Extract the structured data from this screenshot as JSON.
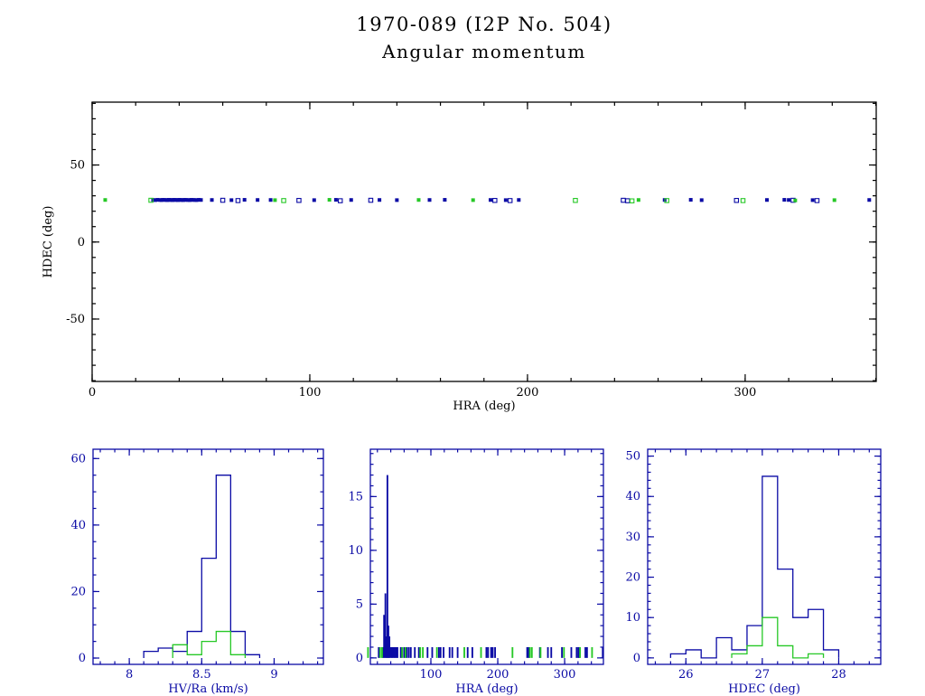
{
  "figure": {
    "title": "1970-089 (I2P No. 504)",
    "subtitle": "Angular momentum"
  },
  "colors": {
    "top_axis": "#000000",
    "bottom_axis": "#0A0AA5",
    "series_primary_blue": "#0A0AA5",
    "series_secondary_green": "#26C826",
    "background": "#FFFFFF"
  },
  "chart_data": [
    {
      "id": "scatter-hdec-hra",
      "type": "scatter",
      "xlabel": "HRA (deg)",
      "ylabel": "HDEC (deg)",
      "xlim": [
        0,
        360.2
      ],
      "ylim": [
        -90.5,
        90.8
      ],
      "xticks": [
        0,
        100,
        200,
        300
      ],
      "yticks": [
        -50,
        0,
        50
      ],
      "grid": false,
      "legend": "none",
      "frame_color": "#000000",
      "text_color": "#000000",
      "series": [
        {
          "name": "primary-filled",
          "color": "#0A0AA5",
          "marker": "square-filled",
          "points": [
            [
              28,
              27.3
            ],
            [
              29,
              27.2
            ],
            [
              30,
              27.4
            ],
            [
              31,
              27.3
            ],
            [
              31.8,
              27.2
            ],
            [
              32.5,
              27.4
            ],
            [
              33.2,
              27.3
            ],
            [
              34,
              27.3
            ],
            [
              34.6,
              27.2
            ],
            [
              35.2,
              27.4
            ],
            [
              35.8,
              27.3
            ],
            [
              36.4,
              27.3
            ],
            [
              37,
              27.2
            ],
            [
              37.6,
              27.4
            ],
            [
              38.2,
              27.3
            ],
            [
              38.8,
              27.3
            ],
            [
              39.4,
              27.2
            ],
            [
              40,
              27.4
            ],
            [
              40.6,
              27.3
            ],
            [
              41.2,
              27.3
            ],
            [
              41.8,
              27.2
            ],
            [
              42.5,
              27.4
            ],
            [
              43.2,
              27.3
            ],
            [
              44,
              27.3
            ],
            [
              44.8,
              27.2
            ],
            [
              45.6,
              27.4
            ],
            [
              46.4,
              27.3
            ],
            [
              47.2,
              27.3
            ],
            [
              48,
              27.2
            ],
            [
              49,
              27.4
            ],
            [
              50,
              27.3
            ],
            [
              55,
              27.3
            ],
            [
              64,
              27.2
            ],
            [
              70,
              27.4
            ],
            [
              76,
              27.3
            ],
            [
              82,
              27.3
            ],
            [
              102,
              27.2
            ],
            [
              112,
              27.4
            ],
            [
              119,
              27.3
            ],
            [
              132,
              27.3
            ],
            [
              140,
              27.2
            ],
            [
              155,
              27.3
            ],
            [
              162,
              27.4
            ],
            [
              183,
              27.3
            ],
            [
              190,
              27.2
            ],
            [
              196,
              27.3
            ],
            [
              263,
              27.3
            ],
            [
              275,
              27.4
            ],
            [
              280,
              27.2
            ],
            [
              310,
              27.3
            ],
            [
              318,
              27.4
            ],
            [
              320,
              27.3
            ],
            [
              331,
              27.2
            ],
            [
              357,
              27.3
            ]
          ]
        },
        {
          "name": "primary-open",
          "color": "#0A0AA5",
          "marker": "square-open",
          "points": [
            [
              60,
              27.1
            ],
            [
              67,
              26.9
            ],
            [
              95,
              27.0
            ],
            [
              114,
              26.8
            ],
            [
              128,
              27.1
            ],
            [
              185,
              27.0
            ],
            [
              192,
              26.9
            ],
            [
              244,
              27.1
            ],
            [
              246,
              26.8
            ],
            [
              296,
              27.0
            ],
            [
              322,
              27.1
            ],
            [
              333,
              26.9
            ]
          ]
        },
        {
          "name": "secondary-filled",
          "color": "#26C826",
          "marker": "square-filled",
          "points": [
            [
              6,
              27.3
            ],
            [
              84,
              27.2
            ],
            [
              109,
              27.4
            ],
            [
              150,
              27.3
            ],
            [
              175,
              27.2
            ],
            [
              251,
              27.3
            ],
            [
              323,
              27.0
            ],
            [
              341,
              27.2
            ]
          ]
        },
        {
          "name": "secondary-open",
          "color": "#26C826",
          "marker": "square-open",
          "points": [
            [
              27,
              27.1
            ],
            [
              88,
              26.9
            ],
            [
              222,
              27.0
            ],
            [
              248,
              26.7
            ],
            [
              264,
              26.9
            ],
            [
              299,
              26.9
            ]
          ]
        }
      ]
    },
    {
      "id": "hist-hvra",
      "type": "histogram",
      "xlabel": "HV/Ra (km/s)",
      "ylabel": "",
      "xlim": [
        7.75,
        9.34
      ],
      "ylim": [
        -1.9,
        62.8
      ],
      "xticks": [
        8,
        8.5,
        9
      ],
      "yticks": [
        0,
        20,
        40,
        60
      ],
      "frame_color": "#0A0AA5",
      "text_color": "#0A0AA5",
      "series": [
        {
          "name": "all",
          "color": "#0A0AA5",
          "bin_start": 8.1,
          "bin_width": 0.1,
          "counts": [
            2,
            3,
            2,
            8,
            30,
            55,
            8,
            1
          ]
        },
        {
          "name": "subset",
          "color": "#26C826",
          "bin_start": 8.3,
          "bin_width": 0.1,
          "counts": [
            4,
            1,
            5,
            8,
            1
          ]
        }
      ]
    },
    {
      "id": "hist-hra",
      "type": "histogram",
      "xlabel": "HRA (deg)",
      "ylabel": "",
      "xlim": [
        9.5,
        358
      ],
      "ylim": [
        -0.6,
        19.4
      ],
      "xticks": [
        100,
        200,
        300
      ],
      "yticks": [
        0,
        5,
        10,
        15
      ],
      "frame_color": "#0A0AA5",
      "text_color": "#0A0AA5",
      "series": [
        {
          "name": "all",
          "color": "#0A0AA5",
          "style": "bars",
          "bar_width": 2.5,
          "bars": [
            [
              22,
              1
            ],
            [
              28,
              1
            ],
            [
              30,
              4
            ],
            [
              32,
              6
            ],
            [
              33.5,
              2
            ],
            [
              35,
              17
            ],
            [
              36.5,
              3
            ],
            [
              38,
              2
            ],
            [
              40,
              1
            ],
            [
              42,
              1
            ],
            [
              44,
              1
            ],
            [
              46,
              1
            ],
            [
              48,
              1
            ],
            [
              50,
              1
            ],
            [
              55,
              1
            ],
            [
              60,
              1
            ],
            [
              64,
              1
            ],
            [
              67,
              1
            ],
            [
              70,
              1
            ],
            [
              76,
              1
            ],
            [
              82,
              1
            ],
            [
              95,
              1
            ],
            [
              102,
              1
            ],
            [
              112,
              1
            ],
            [
              114.5,
              1
            ],
            [
              119,
              1
            ],
            [
              128,
              1
            ],
            [
              132,
              1
            ],
            [
              140,
              1
            ],
            [
              155,
              1
            ],
            [
              162,
              1
            ],
            [
              183,
              1
            ],
            [
              185.5,
              1
            ],
            [
              190,
              1
            ],
            [
              192.5,
              1
            ],
            [
              196,
              1
            ],
            [
              244,
              1
            ],
            [
              246.5,
              1
            ],
            [
              263,
              1
            ],
            [
              275,
              1
            ],
            [
              280,
              1
            ],
            [
              296,
              1
            ],
            [
              310,
              1
            ],
            [
              318,
              1
            ],
            [
              320.5,
              1
            ],
            [
              322,
              1
            ],
            [
              331,
              1
            ],
            [
              333.5,
              1
            ],
            [
              357,
              1
            ]
          ]
        },
        {
          "name": "subset",
          "color": "#26C826",
          "style": "bars",
          "bar_width": 2.5,
          "bars": [
            [
              6,
              1
            ],
            [
              24,
              1
            ],
            [
              27,
              1
            ],
            [
              57,
              1
            ],
            [
              62,
              1
            ],
            [
              84,
              1
            ],
            [
              88,
              1
            ],
            [
              109,
              1
            ],
            [
              150,
              1
            ],
            [
              175,
              1
            ],
            [
              222,
              1
            ],
            [
              248,
              1
            ],
            [
              251,
              1
            ],
            [
              264,
              1
            ],
            [
              299,
              1
            ],
            [
              323,
              1
            ],
            [
              341,
              1
            ]
          ]
        }
      ]
    },
    {
      "id": "hist-hdec",
      "type": "histogram",
      "xlabel": "HDEC (deg)",
      "ylabel": "",
      "xlim": [
        25.5,
        28.55
      ],
      "ylim": [
        -1.6,
        51.7
      ],
      "xticks": [
        26,
        27,
        28
      ],
      "yticks": [
        0,
        10,
        20,
        30,
        40,
        50
      ],
      "frame_color": "#0A0AA5",
      "text_color": "#0A0AA5",
      "series": [
        {
          "name": "all",
          "color": "#0A0AA5",
          "bin_start": 25.8,
          "bin_width": 0.2,
          "counts": [
            1,
            2,
            0,
            5,
            2,
            8,
            45,
            22,
            10,
            12,
            2
          ]
        },
        {
          "name": "subset",
          "color": "#26C826",
          "bin_start": 26.6,
          "bin_width": 0.2,
          "counts": [
            1,
            3,
            10,
            3,
            0,
            1
          ]
        }
      ]
    }
  ]
}
